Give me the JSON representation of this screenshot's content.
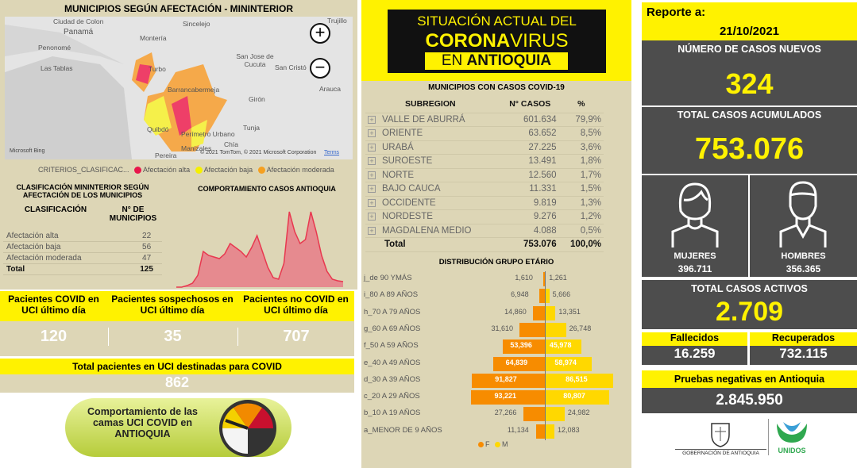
{
  "map": {
    "title": "MUNICIPIOS SEGÚN AFECTACIÓN - MININTERIOR",
    "places": [
      "Ciudad de Colon",
      "Panamá",
      "Penonomé",
      "Las Tablas",
      "Sincelejo",
      "Montería",
      "Turbo",
      "San Jose de Cucuta",
      "San Cristó",
      "Arauca",
      "Trujillo",
      "Girón",
      "Barrancabermeja",
      "Quibdó",
      "Tunja",
      "Manizales",
      "Pereira",
      "Chía",
      "Perímetro Urbano"
    ],
    "attribution": "© 2021 TomTom, © 2021 Microsoft Corporation",
    "terms": "Terms",
    "bing": "Microsoft Bing",
    "zoom_in": "+",
    "zoom_out": "−",
    "legend": {
      "title": "CRITERIOS_CLASIFICAC...",
      "items": [
        {
          "label": "Afectación alta",
          "color": "#e8174b"
        },
        {
          "label": "Afectación baja",
          "color": "#f5f000"
        },
        {
          "label": "Afectación moderada",
          "color": "#f5a020"
        }
      ]
    }
  },
  "classification": {
    "title": "CLASIFICACIÓN MININTERIOR SEGÚN AFECTACIÓN DE LOS MUNICIPIOS",
    "col1": "CLASIFICACIÓN",
    "col2": "N° DE MUNICIPIOS",
    "rows": [
      {
        "label": "Afectación alta",
        "value": "22"
      },
      {
        "label": "Afectación baja",
        "value": "56"
      },
      {
        "label": "Afectación moderada",
        "value": "47"
      }
    ],
    "total_label": "Total",
    "total": "125"
  },
  "trend": {
    "title": "COMPORTAMIENTO CASOS ANTIOQUIA"
  },
  "uci": {
    "items": [
      {
        "label": "Pacientes COVID en UCI último día",
        "value": "120"
      },
      {
        "label": "Pacientes sospechosos en UCI último día",
        "value": "35"
      },
      {
        "label": "Pacientes no COVID en UCI último día",
        "value": "707"
      }
    ],
    "total_label": "Total pacientes en UCI destinadas para COVID",
    "total": "862",
    "banner": "Comportamiento de las camas UCI COVID en ANTIOQUIA"
  },
  "header": {
    "line1": "SITUACIÓN ACTUAL DEL",
    "line2a": "CORONA",
    "line2b": "VIRUS",
    "line3a": "EN ",
    "line3b": "ANTIOQUIA"
  },
  "subregions": {
    "title": "MUNICIPIOS CON CASOS COVID-19",
    "cols": [
      "SUBREGION",
      "N° CASOS",
      "%"
    ],
    "rows": [
      [
        "VALLE DE ABURRÁ",
        "601.634",
        "79,9%"
      ],
      [
        "ORIENTE",
        "63.652",
        "8,5%"
      ],
      [
        "URABÁ",
        "27.225",
        "3,6%"
      ],
      [
        "SUROESTE",
        "13.491",
        "1,8%"
      ],
      [
        "NORTE",
        "12.560",
        "1,7%"
      ],
      [
        "BAJO CAUCA",
        "11.331",
        "1,5%"
      ],
      [
        "OCCIDENTE",
        "9.819",
        "1,3%"
      ],
      [
        "NORDESTE",
        "9.276",
        "1,2%"
      ],
      [
        "MAGDALENA MEDIO",
        "4.088",
        "0,5%"
      ]
    ],
    "total": [
      "Total",
      "753.076",
      "100,0%"
    ]
  },
  "chart_data": [
    {
      "type": "area",
      "title": "COMPORTAMIENTO CASOS ANTIOQUIA",
      "color": "#e8384f",
      "values": [
        0,
        0,
        0.02,
        0.05,
        0.15,
        0.45,
        0.4,
        0.38,
        0.36,
        0.42,
        0.55,
        0.5,
        0.45,
        0.38,
        0.5,
        0.65,
        0.45,
        0.25,
        0.12,
        0.1,
        0.3,
        0.95,
        0.7,
        0.55,
        0.6,
        0.95,
        0.7,
        0.4,
        0.2,
        0.1,
        0.08,
        0.07
      ]
    },
    {
      "type": "bar",
      "orientation": "horizontal-pyramid",
      "title": "DISTRIBUCIÓN GRUPO ETÁRIO",
      "categories": [
        "j_de 90 YMÁS",
        "i_80 A 89 AÑOS",
        "h_70 A 79 AÑOS",
        "g_60 A 69 AÑOS",
        "f_50 A 59 AÑOS",
        "e_40 A 49 AÑOS",
        "d_30 A 39 AÑOS",
        "c_20 A 29 AÑOS",
        "b_10 A 19 AÑOS",
        "a_MENOR DE 9 AÑOS"
      ],
      "series": [
        {
          "name": "F",
          "color": "#f78c00",
          "values": [
            1610,
            6948,
            14860,
            31610,
            53396,
            64839,
            91827,
            93221,
            27266,
            11134
          ],
          "labels": [
            "1,610",
            "6,948",
            "14,860",
            "31,610",
            "53,396",
            "64,839",
            "91,827",
            "93,221",
            "27,266",
            "11,134"
          ]
        },
        {
          "name": "M",
          "color": "#ffd800",
          "values": [
            1261,
            5666,
            13351,
            26748,
            45978,
            58974,
            86515,
            80807,
            24982,
            12083
          ],
          "labels": [
            "1,261",
            "5,666",
            "13,351",
            "26,748",
            "45,978",
            "58,974",
            "86,515",
            "80,807",
            "24,982",
            "12,083"
          ]
        }
      ],
      "legend": "bottom"
    }
  ],
  "report": {
    "label": "Reporte a:",
    "date": "21/10/2021",
    "new_label": "NÚMERO DE CASOS NUEVOS",
    "new": "324",
    "acc_label": "TOTAL CASOS ACUMULADOS",
    "acc": "753.076",
    "women_label": "MUJERES",
    "women": "396.711",
    "men_label": "HOMBRES",
    "men": "356.365",
    "active_label": "TOTAL CASOS ACTIVOS",
    "active": "2.709",
    "dead_label": "Fallecidos",
    "dead": "16.259",
    "rec_label": "Recuperados",
    "rec": "732.115",
    "neg_label": "Pruebas negativas en Antioquia",
    "neg": "2.845.950",
    "gob": "GOBERNACIÓN DE ANTIOQUIA",
    "unidos": "UNIDOS"
  }
}
